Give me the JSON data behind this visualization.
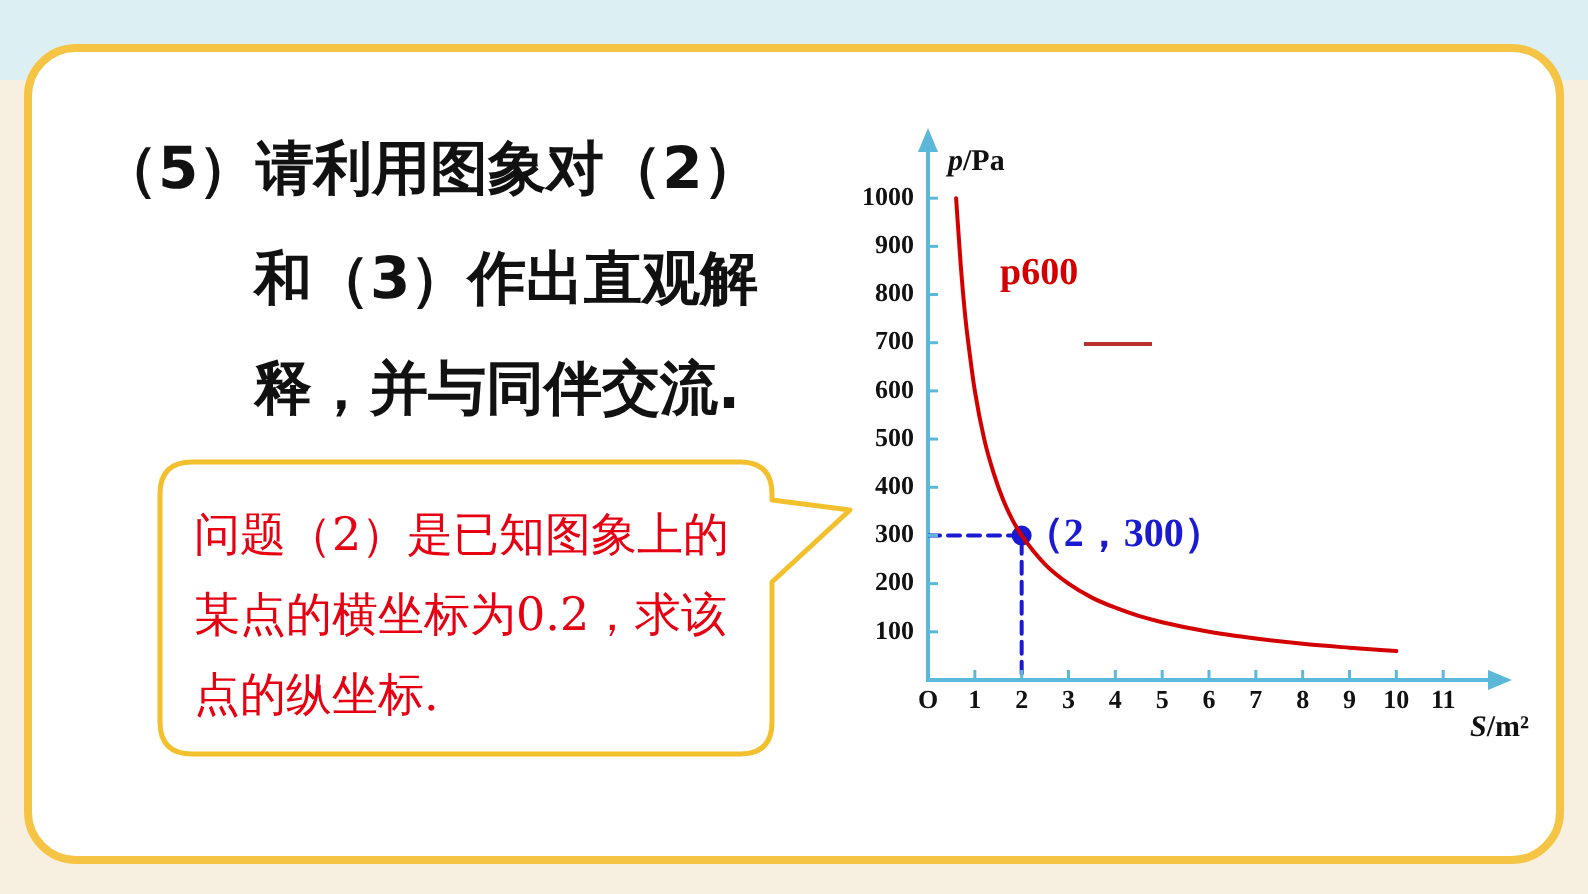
{
  "chart_data": {
    "type": "line",
    "title": "（5）请利用图象对（2）和（3）作出直观解释，并与同伴交流.",
    "xlabel": "S/m²",
    "ylabel": "p/Pa",
    "annotations": [
      "问题（2）是已知图象上的某点的横坐标为0.2，求该点的纵坐标.",
      {
        "text": "（2，300）",
        "x": 2,
        "y": 300
      }
    ],
    "series": [
      {
        "name": "p600",
        "color": "#d40000",
        "marker": "none",
        "x": [
          0.6,
          0.7,
          0.8,
          0.9,
          1,
          1.2,
          1.4,
          1.6,
          1.8,
          2,
          2.5,
          3,
          3.5,
          4,
          4.5,
          5,
          6,
          7,
          8,
          9,
          10
        ],
        "values": [
          1000,
          860,
          750,
          670,
          600,
          500,
          430,
          375,
          333,
          300,
          240,
          200,
          171,
          150,
          133,
          120,
          100,
          86,
          75,
          67,
          60
        ]
      },
      {
        "color": "#1a1ad2",
        "line_style": "dashed",
        "marker": "none",
        "x": [
          0,
          2,
          2
        ],
        "values": [
          300,
          300,
          0
        ]
      },
      {
        "type": "scatter",
        "color": "#1a1ad2",
        "marker": "circle",
        "x": [
          2
        ],
        "values": [
          300
        ]
      }
    ],
    "xlim": [
      0,
      12
    ],
    "xticks": [
      {
        "value": 0,
        "label": "O"
      },
      1,
      2,
      3,
      4,
      5,
      6,
      7,
      8,
      9,
      10,
      11
    ],
    "ylim": [
      0,
      1100
    ],
    "yticks": [
      100,
      200,
      300,
      400,
      500,
      600,
      700,
      800,
      900,
      1000
    ]
  }
}
